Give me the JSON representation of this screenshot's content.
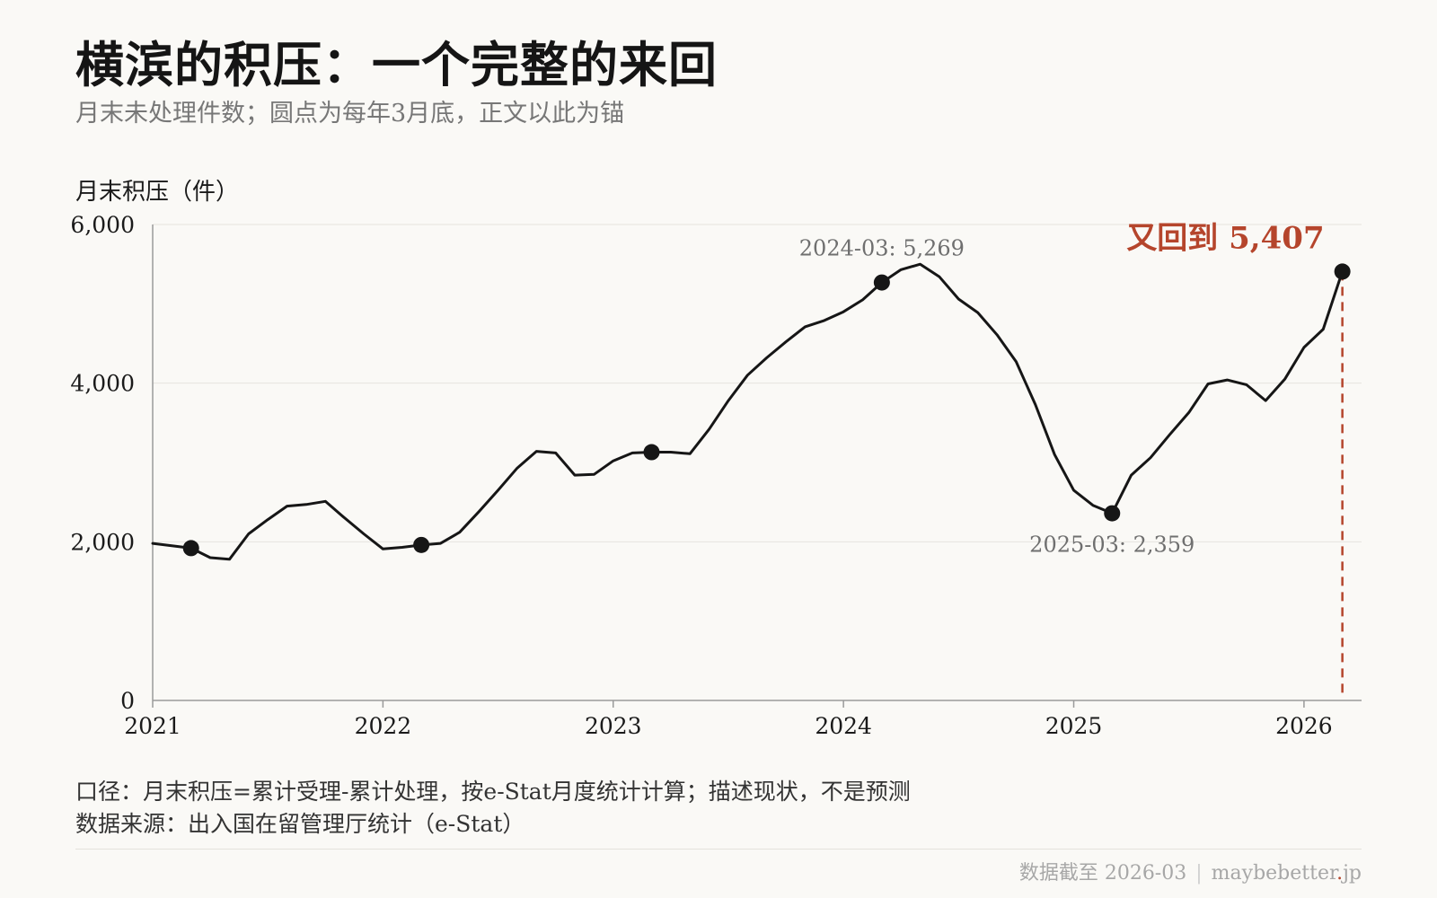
{
  "title": "横滨的积压：一个完整的来回",
  "subtitle": "月末未处理件数；圆点为每年3月底，正文以此为锚",
  "chart_data": {
    "type": "line",
    "ylabel": "月末积压（件）",
    "ylim": [
      0,
      6000
    ],
    "yticks": [
      0,
      2000,
      4000,
      6000
    ],
    "ytick_labels": [
      "0",
      "2,000",
      "4,000",
      "6,000"
    ],
    "xlim": [
      "2021-01",
      "2026-04"
    ],
    "xticks": [
      "2021",
      "2022",
      "2023",
      "2024",
      "2025",
      "2026"
    ],
    "grid": true,
    "series": [
      {
        "x": [
          "2021-01",
          "2021-02",
          "2021-03",
          "2021-04",
          "2021-05",
          "2021-06",
          "2021-07",
          "2021-08",
          "2021-09",
          "2021-10",
          "2021-11",
          "2021-12",
          "2022-01",
          "2022-02",
          "2022-03",
          "2022-04",
          "2022-05",
          "2022-06",
          "2022-07",
          "2022-08",
          "2022-09",
          "2022-10",
          "2022-11",
          "2022-12",
          "2023-01",
          "2023-02",
          "2023-03",
          "2023-04",
          "2023-05",
          "2023-06",
          "2023-07",
          "2023-08",
          "2023-09",
          "2023-10",
          "2023-11",
          "2023-12",
          "2024-01",
          "2024-02",
          "2024-03",
          "2024-04",
          "2024-05",
          "2024-06",
          "2024-07",
          "2024-08",
          "2024-09",
          "2024-10",
          "2024-11",
          "2024-12",
          "2025-01",
          "2025-02",
          "2025-03",
          "2025-04",
          "2025-05",
          "2025-06",
          "2025-07",
          "2025-08",
          "2025-09",
          "2025-10",
          "2025-11",
          "2025-12",
          "2026-01",
          "2026-02",
          "2026-03"
        ],
        "y": [
          1980,
          1950,
          1920,
          1800,
          1780,
          2100,
          2280,
          2450,
          2470,
          2510,
          2300,
          2100,
          1910,
          1930,
          1960,
          1980,
          2120,
          2380,
          2650,
          2930,
          3140,
          3120,
          2840,
          2850,
          3020,
          3120,
          3130,
          3130,
          3110,
          3420,
          3780,
          4100,
          4320,
          4520,
          4710,
          4790,
          4900,
          5050,
          5269,
          5430,
          5500,
          5340,
          5060,
          4890,
          4610,
          4270,
          3730,
          3100,
          2650,
          2460,
          2359,
          2840,
          3060,
          3350,
          3630,
          3990,
          4040,
          3980,
          3780,
          4050,
          4450,
          4680,
          5407
        ],
        "markers": [
          {
            "x": "2021-03",
            "y": 1920
          },
          {
            "x": "2022-03",
            "y": 1960
          },
          {
            "x": "2023-03",
            "y": 3130
          },
          {
            "x": "2024-03",
            "y": 5269
          },
          {
            "x": "2025-03",
            "y": 2359
          },
          {
            "x": "2026-03",
            "y": 5407
          }
        ]
      }
    ],
    "annotations": [
      {
        "x": "2024-03",
        "y": 5269,
        "text": "2024-03: 5,269",
        "pos": "above"
      },
      {
        "x": "2025-03",
        "y": 2359,
        "text": "2025-03: 2,359",
        "pos": "below"
      },
      {
        "x": "2026-03",
        "y": 5407,
        "text": "又回到 5,407",
        "pos": "above-left",
        "highlight": true
      }
    ],
    "highlight_color": "#b5452c",
    "line_color": "#161616"
  },
  "notes": {
    "method": "口径：月末积压=累计受理-累计处理，按e-Stat月度统计计算；描述现状，不是预测",
    "source": "数据来源：出入国在留管理厅统计（e-Stat）"
  },
  "footer": {
    "date": "数据截至 2026-03",
    "sep": "|",
    "site_a": "maybebetter",
    "site_dot": ".",
    "site_b": "jp"
  }
}
